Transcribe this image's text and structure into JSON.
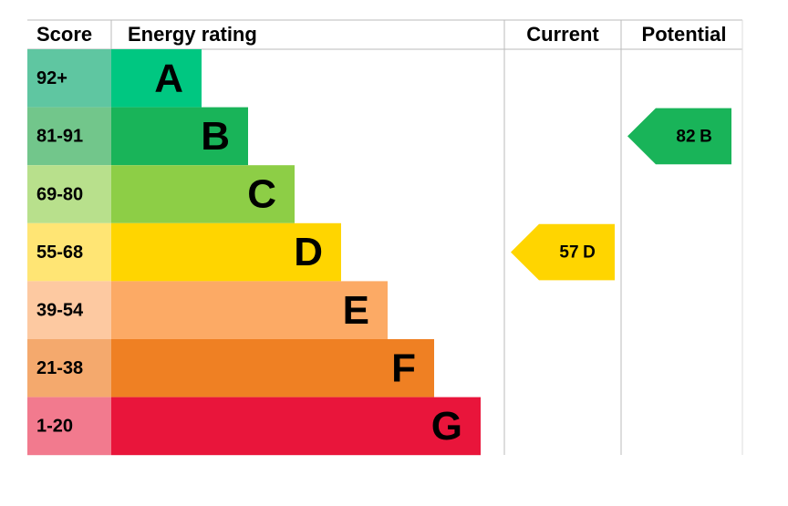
{
  "header": {
    "score": "Score",
    "energy_rating": "Energy rating",
    "current": "Current",
    "potential": "Potential"
  },
  "bands": [
    {
      "score": "92+",
      "letter": "A",
      "color": "#00c781",
      "score_color": "#5fc6a1"
    },
    {
      "score": "81-91",
      "letter": "B",
      "color": "#19b459",
      "score_color": "#72c68b"
    },
    {
      "score": "69-80",
      "letter": "C",
      "color": "#8dce46",
      "score_color": "#b8e08c"
    },
    {
      "score": "55-68",
      "letter": "D",
      "color": "#ffd500",
      "score_color": "#ffe574"
    },
    {
      "score": "39-54",
      "letter": "E",
      "color": "#fcaa65",
      "score_color": "#fdc9a1"
    },
    {
      "score": "21-38",
      "letter": "F",
      "color": "#ef8023",
      "score_color": "#f4a96d"
    },
    {
      "score": "1-20",
      "letter": "G",
      "color": "#e9153b",
      "score_color": "#f27a8e"
    }
  ],
  "current": {
    "score": "57",
    "letter": "D",
    "color": "#ffd500"
  },
  "potential": {
    "score": "82",
    "letter": "B",
    "color": "#19b459"
  }
}
